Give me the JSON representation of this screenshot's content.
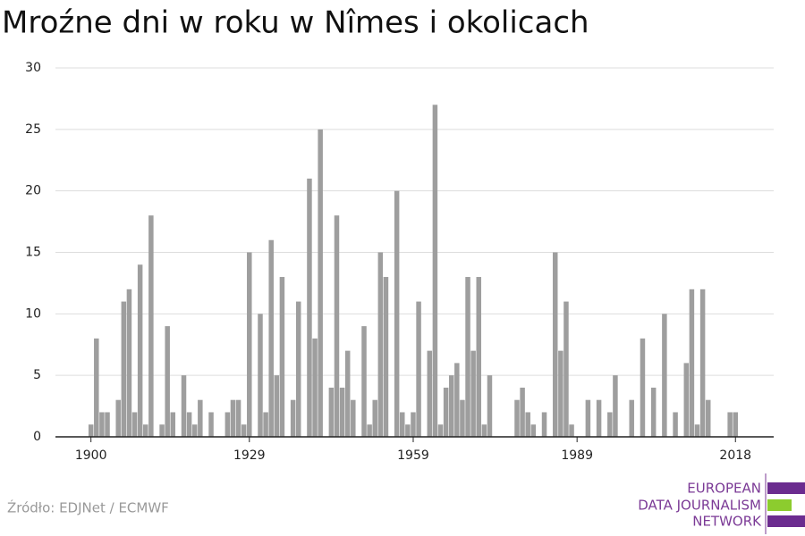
{
  "chart_data": {
    "type": "bar",
    "title": "Mroźne dni w roku w Nîmes i okolicach",
    "x": [
      1900,
      1901,
      1902,
      1903,
      1904,
      1905,
      1906,
      1907,
      1908,
      1909,
      1910,
      1911,
      1912,
      1913,
      1914,
      1915,
      1916,
      1917,
      1918,
      1919,
      1920,
      1921,
      1922,
      1923,
      1924,
      1925,
      1926,
      1927,
      1928,
      1929,
      1930,
      1931,
      1932,
      1933,
      1934,
      1935,
      1936,
      1937,
      1938,
      1939,
      1940,
      1941,
      1942,
      1943,
      1944,
      1945,
      1946,
      1947,
      1948,
      1949,
      1950,
      1951,
      1952,
      1953,
      1954,
      1955,
      1956,
      1957,
      1958,
      1959,
      1960,
      1961,
      1962,
      1963,
      1964,
      1965,
      1966,
      1967,
      1968,
      1969,
      1970,
      1971,
      1972,
      1973,
      1974,
      1975,
      1976,
      1977,
      1978,
      1979,
      1980,
      1981,
      1982,
      1983,
      1984,
      1985,
      1986,
      1987,
      1988,
      1989,
      1990,
      1991,
      1992,
      1993,
      1994,
      1995,
      1996,
      1997,
      1998,
      1999,
      2000,
      2001,
      2002,
      2003,
      2004,
      2005,
      2006,
      2007,
      2008,
      2009,
      2010,
      2011,
      2012,
      2013,
      2014,
      2015,
      2016,
      2017,
      2018
    ],
    "values": [
      1,
      8,
      2,
      2,
      0,
      3,
      11,
      12,
      2,
      14,
      1,
      18,
      0,
      1,
      9,
      2,
      0,
      5,
      2,
      1,
      3,
      0,
      2,
      0,
      0,
      2,
      3,
      3,
      1,
      15,
      0,
      10,
      2,
      16,
      5,
      13,
      0,
      3,
      11,
      0,
      21,
      8,
      25,
      0,
      4,
      18,
      4,
      7,
      3,
      0,
      9,
      1,
      3,
      15,
      13,
      0,
      20,
      2,
      1,
      2,
      11,
      0,
      7,
      27,
      1,
      4,
      5,
      6,
      3,
      13,
      7,
      13,
      1,
      5,
      0,
      0,
      0,
      0,
      3,
      4,
      2,
      1,
      0,
      2,
      0,
      15,
      7,
      11,
      1,
      0,
      0,
      3,
      0,
      3,
      0,
      2,
      5,
      0,
      0,
      3,
      0,
      8,
      0,
      4,
      0,
      10,
      0,
      2,
      0,
      6,
      12,
      1,
      12,
      3,
      0,
      0,
      0,
      2,
      2
    ],
    "color": "#9e9e9e",
    "xlim": [
      1893.5,
      2025
    ],
    "xticks": [
      1900,
      1929,
      1959,
      1989,
      2018
    ],
    "ylim": [
      0,
      30
    ],
    "yticks": [
      0,
      5,
      10,
      15,
      20,
      25,
      30
    ],
    "grid": true,
    "source": "Źródło: EDJNet / ECMWF",
    "logo_lines": [
      "EUROPEAN",
      "DATA JOURNALISM",
      "NETWORK"
    ]
  }
}
